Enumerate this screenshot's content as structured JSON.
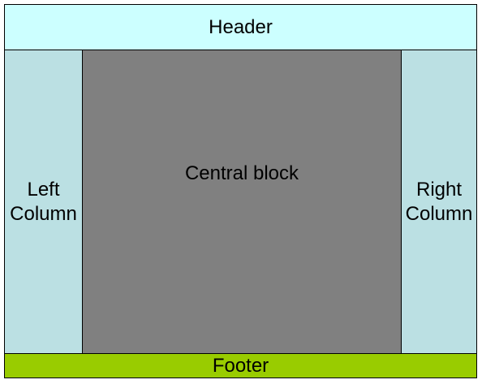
{
  "header": {
    "label": "Header",
    "color": "#ccffff"
  },
  "left_column": {
    "label": "Left\nColumn",
    "color": "#bbe0e3"
  },
  "central_block": {
    "label": "Central block",
    "color": "#808080"
  },
  "right_column": {
    "label": "Right\nColumn",
    "color": "#bbe0e3"
  },
  "footer": {
    "label": "Footer",
    "color": "#99cc00"
  },
  "border_color": "#000000"
}
